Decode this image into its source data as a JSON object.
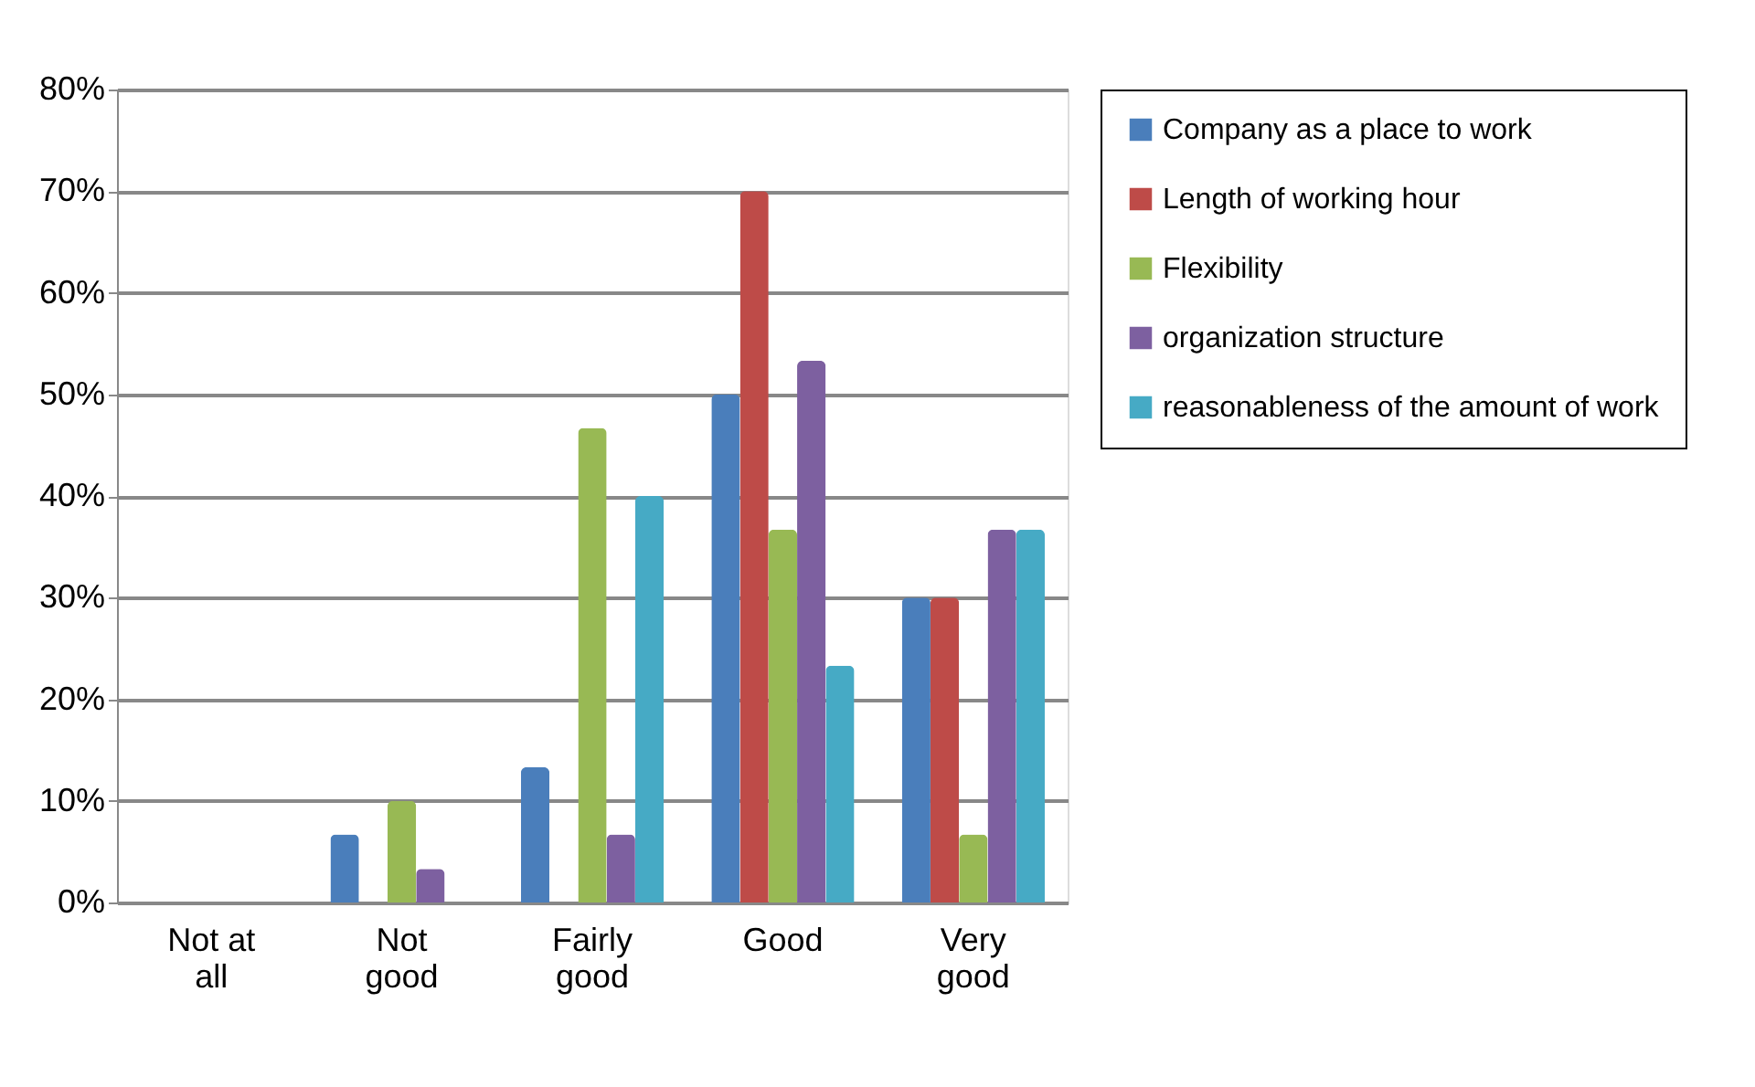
{
  "chart_data": {
    "type": "bar",
    "categories": [
      "Not at all",
      "Not good",
      "Fairly good",
      "Good",
      "Very good"
    ],
    "series": [
      {
        "name": "Company as a place to work",
        "color": "#4a7ebb",
        "values": [
          0,
          6.7,
          13.3,
          50,
          30
        ]
      },
      {
        "name": "Length of working hour",
        "color": "#be4b48",
        "values": [
          0,
          0,
          0,
          70,
          30
        ]
      },
      {
        "name": "Flexibility",
        "color": "#98b954",
        "values": [
          0,
          10,
          46.7,
          36.7,
          6.7
        ]
      },
      {
        "name": "organization structure",
        "color": "#7d60a0",
        "values": [
          0,
          3.3,
          6.7,
          53.3,
          36.7
        ]
      },
      {
        "name": "reasonableness of the amount of work",
        "color": "#46aac5",
        "values": [
          0,
          0,
          40,
          23.3,
          36.7
        ]
      }
    ],
    "ylim": [
      0,
      80
    ],
    "yticks": [
      {
        "value": 0,
        "label": "0%"
      },
      {
        "value": 10,
        "label": "10%"
      },
      {
        "value": 20,
        "label": "20%"
      },
      {
        "value": 30,
        "label": "30%"
      },
      {
        "value": 40,
        "label": "40%"
      },
      {
        "value": 50,
        "label": "50%"
      },
      {
        "value": 60,
        "label": "60%"
      },
      {
        "value": 70,
        "label": "70%"
      },
      {
        "value": 80,
        "label": "80%"
      }
    ],
    "grid": "y",
    "legend": "right"
  }
}
